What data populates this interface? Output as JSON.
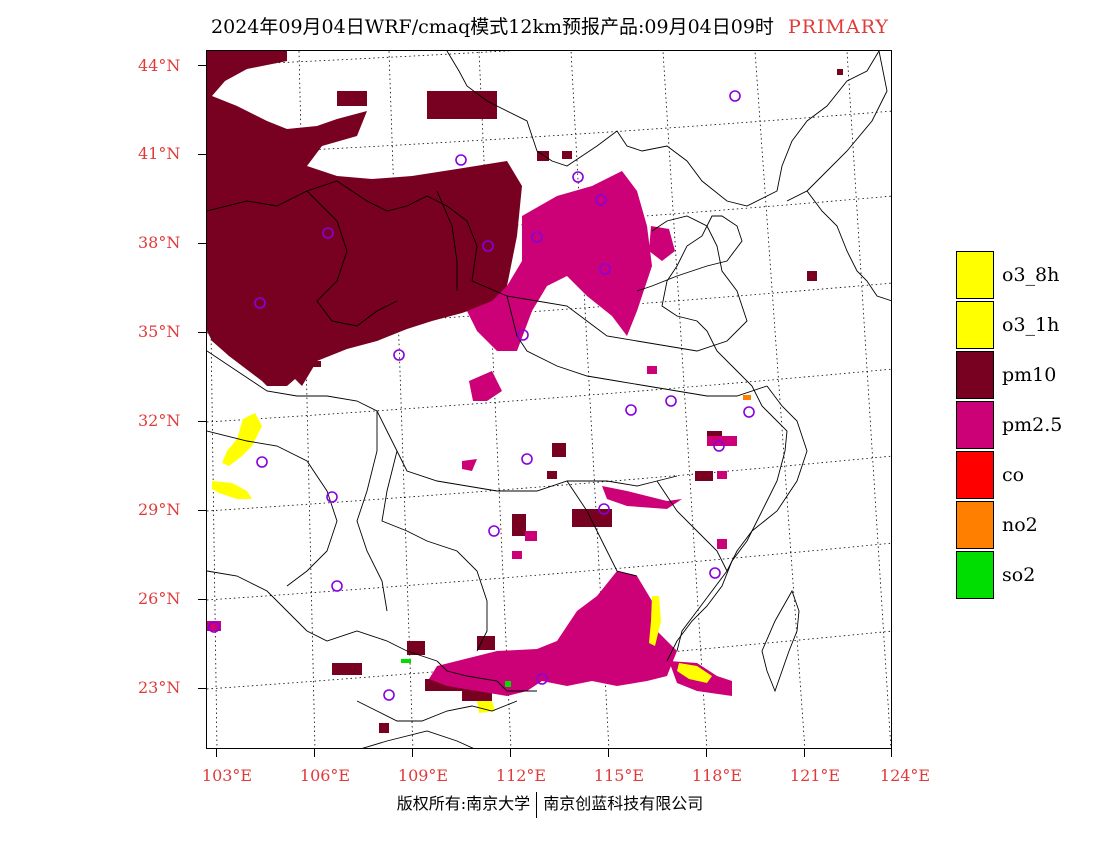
{
  "title": "2024年09月04日WRF/cmaq模式12km预报产品:09月04日09时",
  "title_tag": "PRIMARY",
  "latitude_labels": [
    "44°N",
    "41°N",
    "38°N",
    "35°N",
    "32°N",
    "29°N",
    "26°N",
    "23°N"
  ],
  "longitude_labels": [
    "103°E",
    "106°E",
    "109°E",
    "112°E",
    "115°E",
    "118°E",
    "121°E",
    "124°E"
  ],
  "legend": [
    {
      "label": "o3_8h",
      "color": "#ffff00"
    },
    {
      "label": "o3_1h",
      "color": "#ffff00"
    },
    {
      "label": "pm10",
      "color": "#780020"
    },
    {
      "label": "pm2.5",
      "color": "#cc0077"
    },
    {
      "label": "co",
      "color": "#ff0000"
    },
    {
      "label": "no2",
      "color": "#ff7f00"
    },
    {
      "label": "so2",
      "color": "#00dd00"
    }
  ],
  "footer_left": "版权所有:南京大学",
  "footer_right": "南京创蓝科技有限公司",
  "colors": {
    "accent": "#e03a3a",
    "pm10": "#780020",
    "pm25": "#cc0077",
    "o3": "#ffff00",
    "station": "#8800dd"
  }
}
